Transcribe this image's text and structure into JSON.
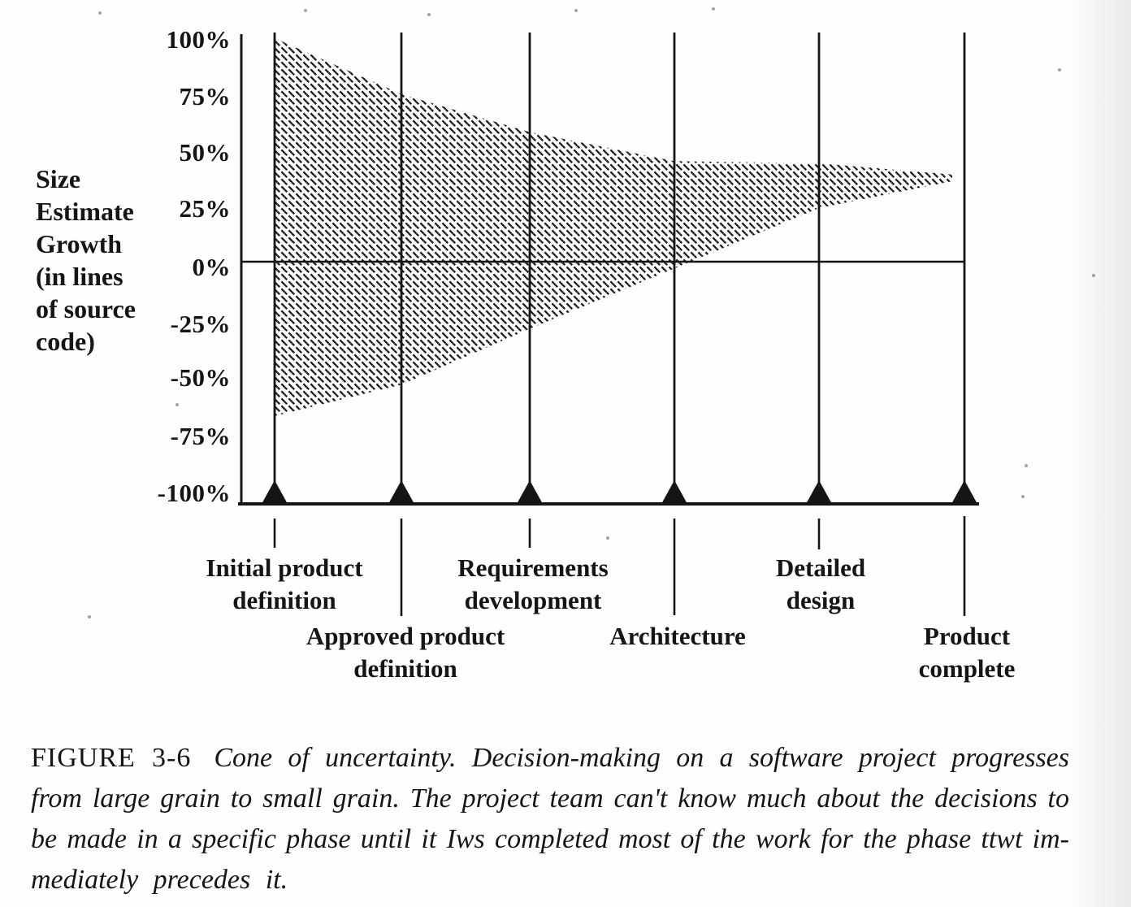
{
  "figure": {
    "y_axis_title_lines": [
      "Size",
      "Estimate",
      "Growth",
      "(in lines",
      "of source",
      "code)"
    ],
    "y_tick_labels": [
      "100%",
      "75%",
      "50%",
      "25%",
      "0%",
      "-25%",
      "-50%",
      "-75%",
      "-100%"
    ],
    "milestones": [
      {
        "line1": "Initial product",
        "line2": "definition"
      },
      {
        "line1": "Approved product",
        "line2": "definition"
      },
      {
        "line1": "Requirements",
        "line2": "development"
      },
      {
        "line1": "Architecture",
        "line2": ""
      },
      {
        "line1": "Detailed",
        "line2": "design"
      },
      {
        "line1": "Product",
        "line2": "complete"
      }
    ]
  },
  "caption": {
    "label": "FIGURE 3-6",
    "lines": [
      "Cone of uncertainty. Decision-making on a software project progresses",
      "from large grain to small grain. The project team can't know much about the decisions to",
      "be made in a specific phase until it Iws completed most of the work for the phase ttwt im-",
      "mediately precedes it."
    ]
  },
  "chart_data": {
    "type": "area",
    "title": "Cone of uncertainty",
    "categories": [
      "Initial product definition",
      "Approved product definition",
      "Requirements development",
      "Architecture",
      "Detailed design",
      "Product complete"
    ],
    "series": [
      {
        "name": "upper bound of size estimate growth (%)",
        "values": [
          100,
          75,
          58,
          45,
          44,
          39
        ]
      },
      {
        "name": "lower bound of size estimate growth (%)",
        "values": [
          -69,
          -55,
          -30,
          -3,
          24,
          36
        ]
      }
    ],
    "xlabel": "",
    "ylabel": "Size Estimate Growth (in lines of source code)",
    "ytick_percent": [
      100,
      75,
      50,
      25,
      0,
      -25,
      -50,
      -75,
      -100
    ],
    "ylim": [
      -100,
      100
    ],
    "legend": "none",
    "grid": "vertical milestone lines",
    "fill_style": "diagonal-hatch",
    "ink_color": "#151515"
  }
}
